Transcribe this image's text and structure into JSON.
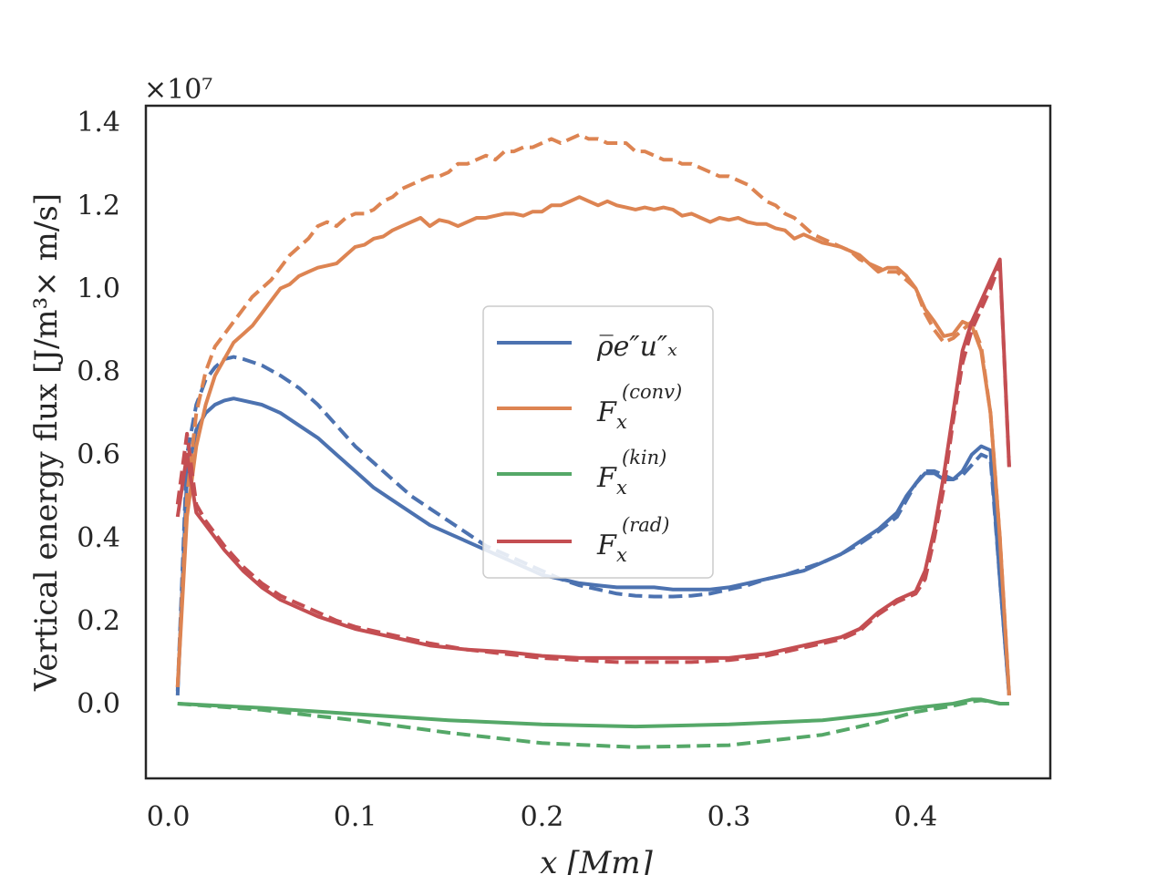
{
  "chart_data": {
    "type": "line",
    "title": "",
    "xlabel": "x [Mm]",
    "ylabel": "Vertical energy flux [J/m³× m/s]",
    "offset_label": "×10⁷",
    "xlim": [
      -0.012,
      0.472
    ],
    "ylim": [
      -0.18,
      1.44
    ],
    "xticks": [
      0.0,
      0.1,
      0.2,
      0.3,
      0.4
    ],
    "xtick_labels": [
      "0.0",
      "0.1",
      "0.2",
      "0.3",
      "0.4"
    ],
    "yticks": [
      0.0,
      0.2,
      0.4,
      0.6,
      0.8,
      1.0,
      1.2,
      1.4
    ],
    "ytick_labels": [
      "0.0",
      "0.2",
      "0.4",
      "0.6",
      "0.8",
      "1.0",
      "1.2",
      "1.4"
    ],
    "legend": {
      "position": "center",
      "entries": [
        {
          "series": "enthalpy",
          "label": "ρ̅e″u″ₓ"
        },
        {
          "series": "conv",
          "label_base": "F",
          "label_sub": "x",
          "label_sup": "(conv)"
        },
        {
          "series": "kin",
          "label_base": "F",
          "label_sub": "x",
          "label_sup": "(kin)"
        },
        {
          "series": "rad",
          "label_base": "F",
          "label_sub": "x",
          "label_sup": "(rad)"
        }
      ]
    },
    "series": [
      {
        "name": "enthalpy",
        "color": "#4c72b0",
        "style": "solid",
        "x": [
          0.005,
          0.01,
          0.015,
          0.02,
          0.025,
          0.03,
          0.035,
          0.04,
          0.05,
          0.06,
          0.07,
          0.08,
          0.09,
          0.1,
          0.11,
          0.12,
          0.13,
          0.14,
          0.15,
          0.16,
          0.17,
          0.18,
          0.19,
          0.2,
          0.21,
          0.22,
          0.23,
          0.24,
          0.25,
          0.26,
          0.27,
          0.28,
          0.29,
          0.3,
          0.31,
          0.32,
          0.33,
          0.34,
          0.35,
          0.36,
          0.37,
          0.38,
          0.39,
          0.395,
          0.4,
          0.405,
          0.41,
          0.415,
          0.42,
          0.425,
          0.43,
          0.435,
          0.44,
          0.445,
          0.45
        ],
        "y": [
          0.02,
          0.55,
          0.66,
          0.7,
          0.72,
          0.73,
          0.735,
          0.73,
          0.72,
          0.7,
          0.67,
          0.64,
          0.6,
          0.56,
          0.52,
          0.49,
          0.46,
          0.43,
          0.41,
          0.39,
          0.37,
          0.35,
          0.33,
          0.31,
          0.3,
          0.29,
          0.285,
          0.28,
          0.28,
          0.28,
          0.275,
          0.275,
          0.275,
          0.28,
          0.29,
          0.3,
          0.31,
          0.32,
          0.34,
          0.36,
          0.39,
          0.42,
          0.46,
          0.5,
          0.53,
          0.555,
          0.555,
          0.54,
          0.54,
          0.56,
          0.6,
          0.62,
          0.61,
          0.3,
          0.02
        ]
      },
      {
        "name": "enthalpy_dashed",
        "color": "#4c72b0",
        "style": "dashed",
        "x": [
          0.005,
          0.01,
          0.015,
          0.02,
          0.025,
          0.03,
          0.035,
          0.04,
          0.05,
          0.06,
          0.07,
          0.08,
          0.09,
          0.1,
          0.11,
          0.12,
          0.13,
          0.14,
          0.15,
          0.16,
          0.17,
          0.18,
          0.19,
          0.2,
          0.21,
          0.22,
          0.23,
          0.24,
          0.25,
          0.26,
          0.27,
          0.28,
          0.29,
          0.3,
          0.31,
          0.32,
          0.33,
          0.34,
          0.35,
          0.36,
          0.37,
          0.38,
          0.39,
          0.395,
          0.4,
          0.405,
          0.41,
          0.415,
          0.42,
          0.425,
          0.43,
          0.435,
          0.44,
          0.445,
          0.45
        ],
        "y": [
          0.03,
          0.6,
          0.72,
          0.78,
          0.81,
          0.83,
          0.835,
          0.83,
          0.815,
          0.79,
          0.76,
          0.72,
          0.67,
          0.62,
          0.58,
          0.54,
          0.5,
          0.47,
          0.44,
          0.41,
          0.38,
          0.36,
          0.34,
          0.32,
          0.3,
          0.285,
          0.275,
          0.265,
          0.26,
          0.258,
          0.258,
          0.26,
          0.265,
          0.275,
          0.285,
          0.3,
          0.31,
          0.325,
          0.34,
          0.36,
          0.385,
          0.415,
          0.45,
          0.49,
          0.53,
          0.56,
          0.56,
          0.55,
          0.54,
          0.55,
          0.575,
          0.6,
          0.59,
          0.3,
          0.02
        ]
      },
      {
        "name": "conv",
        "color": "#dd8452",
        "style": "solid",
        "x": [
          0.005,
          0.01,
          0.015,
          0.02,
          0.025,
          0.03,
          0.035,
          0.04,
          0.045,
          0.05,
          0.055,
          0.06,
          0.065,
          0.07,
          0.075,
          0.08,
          0.085,
          0.09,
          0.095,
          0.1,
          0.105,
          0.11,
          0.115,
          0.12,
          0.125,
          0.13,
          0.135,
          0.14,
          0.145,
          0.15,
          0.155,
          0.16,
          0.165,
          0.17,
          0.175,
          0.18,
          0.185,
          0.19,
          0.195,
          0.2,
          0.205,
          0.21,
          0.215,
          0.22,
          0.225,
          0.23,
          0.235,
          0.24,
          0.245,
          0.25,
          0.255,
          0.26,
          0.265,
          0.27,
          0.275,
          0.28,
          0.285,
          0.29,
          0.295,
          0.3,
          0.305,
          0.31,
          0.315,
          0.32,
          0.325,
          0.33,
          0.335,
          0.34,
          0.345,
          0.35,
          0.355,
          0.36,
          0.365,
          0.37,
          0.375,
          0.38,
          0.385,
          0.39,
          0.395,
          0.4,
          0.405,
          0.41,
          0.415,
          0.42,
          0.425,
          0.43,
          0.435,
          0.44,
          0.445,
          0.45
        ],
        "y": [
          0.04,
          0.45,
          0.62,
          0.72,
          0.79,
          0.83,
          0.87,
          0.89,
          0.91,
          0.94,
          0.97,
          1.0,
          1.01,
          1.03,
          1.04,
          1.05,
          1.055,
          1.06,
          1.08,
          1.1,
          1.105,
          1.12,
          1.125,
          1.14,
          1.15,
          1.16,
          1.17,
          1.15,
          1.165,
          1.16,
          1.15,
          1.16,
          1.17,
          1.17,
          1.175,
          1.18,
          1.18,
          1.175,
          1.185,
          1.185,
          1.2,
          1.2,
          1.21,
          1.22,
          1.21,
          1.2,
          1.21,
          1.2,
          1.195,
          1.19,
          1.195,
          1.19,
          1.195,
          1.19,
          1.175,
          1.18,
          1.17,
          1.16,
          1.17,
          1.165,
          1.17,
          1.16,
          1.155,
          1.155,
          1.145,
          1.14,
          1.12,
          1.13,
          1.12,
          1.11,
          1.105,
          1.1,
          1.09,
          1.08,
          1.06,
          1.04,
          1.05,
          1.05,
          1.03,
          1.0,
          0.95,
          0.92,
          0.885,
          0.89,
          0.92,
          0.91,
          0.85,
          0.7,
          0.4,
          0.02
        ]
      },
      {
        "name": "conv_dashed",
        "color": "#dd8452",
        "style": "dashed",
        "x": [
          0.005,
          0.01,
          0.015,
          0.02,
          0.025,
          0.03,
          0.035,
          0.04,
          0.045,
          0.05,
          0.055,
          0.06,
          0.065,
          0.07,
          0.075,
          0.08,
          0.085,
          0.09,
          0.095,
          0.1,
          0.105,
          0.11,
          0.115,
          0.12,
          0.125,
          0.13,
          0.135,
          0.14,
          0.145,
          0.15,
          0.155,
          0.16,
          0.165,
          0.17,
          0.175,
          0.18,
          0.185,
          0.19,
          0.195,
          0.2,
          0.205,
          0.21,
          0.215,
          0.22,
          0.225,
          0.23,
          0.235,
          0.24,
          0.245,
          0.25,
          0.255,
          0.26,
          0.265,
          0.27,
          0.275,
          0.28,
          0.285,
          0.29,
          0.295,
          0.3,
          0.305,
          0.31,
          0.315,
          0.32,
          0.325,
          0.33,
          0.335,
          0.34,
          0.345,
          0.35,
          0.355,
          0.36,
          0.365,
          0.37,
          0.375,
          0.38,
          0.385,
          0.39,
          0.395,
          0.4,
          0.405,
          0.41,
          0.415,
          0.42,
          0.425,
          0.43,
          0.435,
          0.44,
          0.445,
          0.45
        ],
        "y": [
          0.04,
          0.5,
          0.7,
          0.8,
          0.86,
          0.89,
          0.92,
          0.95,
          0.98,
          1.0,
          1.02,
          1.05,
          1.08,
          1.1,
          1.12,
          1.15,
          1.16,
          1.15,
          1.17,
          1.18,
          1.18,
          1.19,
          1.21,
          1.22,
          1.24,
          1.25,
          1.26,
          1.27,
          1.27,
          1.28,
          1.3,
          1.3,
          1.31,
          1.32,
          1.31,
          1.33,
          1.33,
          1.34,
          1.34,
          1.35,
          1.36,
          1.35,
          1.36,
          1.37,
          1.36,
          1.36,
          1.35,
          1.35,
          1.35,
          1.33,
          1.33,
          1.32,
          1.31,
          1.31,
          1.3,
          1.3,
          1.29,
          1.28,
          1.27,
          1.27,
          1.26,
          1.25,
          1.23,
          1.21,
          1.2,
          1.18,
          1.17,
          1.15,
          1.13,
          1.12,
          1.11,
          1.1,
          1.09,
          1.07,
          1.06,
          1.05,
          1.04,
          1.04,
          1.02,
          1.0,
          0.94,
          0.9,
          0.87,
          0.88,
          0.9,
          0.92,
          0.86,
          0.7,
          0.4,
          0.02
        ]
      },
      {
        "name": "kin",
        "color": "#55a868",
        "style": "solid",
        "x": [
          0.005,
          0.05,
          0.1,
          0.15,
          0.2,
          0.25,
          0.3,
          0.35,
          0.38,
          0.4,
          0.42,
          0.43,
          0.435,
          0.44,
          0.445,
          0.45
        ],
        "y": [
          0.0,
          -0.01,
          -0.025,
          -0.04,
          -0.05,
          -0.055,
          -0.05,
          -0.04,
          -0.025,
          -0.01,
          0.0,
          0.01,
          0.01,
          0.005,
          0.0,
          0.0
        ]
      },
      {
        "name": "kin_dashed",
        "color": "#55a868",
        "style": "dashed",
        "x": [
          0.005,
          0.05,
          0.1,
          0.15,
          0.2,
          0.25,
          0.3,
          0.35,
          0.38,
          0.4,
          0.42,
          0.43,
          0.435,
          0.44,
          0.445,
          0.45
        ],
        "y": [
          0.0,
          -0.015,
          -0.04,
          -0.07,
          -0.095,
          -0.105,
          -0.1,
          -0.075,
          -0.045,
          -0.02,
          -0.005,
          0.005,
          0.008,
          0.005,
          0.0,
          0.0
        ]
      },
      {
        "name": "rad",
        "color": "#c44e52",
        "style": "solid",
        "x": [
          0.005,
          0.01,
          0.015,
          0.02,
          0.03,
          0.04,
          0.05,
          0.06,
          0.07,
          0.08,
          0.09,
          0.1,
          0.12,
          0.14,
          0.16,
          0.18,
          0.2,
          0.22,
          0.24,
          0.26,
          0.28,
          0.3,
          0.32,
          0.34,
          0.36,
          0.37,
          0.38,
          0.39,
          0.4,
          0.405,
          0.41,
          0.415,
          0.42,
          0.425,
          0.43,
          0.435,
          0.44,
          0.445,
          0.45
        ],
        "y": [
          0.45,
          0.6,
          0.46,
          0.43,
          0.37,
          0.32,
          0.28,
          0.25,
          0.23,
          0.21,
          0.195,
          0.18,
          0.16,
          0.14,
          0.13,
          0.125,
          0.115,
          0.11,
          0.11,
          0.11,
          0.11,
          0.11,
          0.12,
          0.14,
          0.16,
          0.18,
          0.22,
          0.25,
          0.27,
          0.32,
          0.42,
          0.55,
          0.7,
          0.85,
          0.92,
          0.97,
          1.02,
          1.07,
          0.57
        ]
      },
      {
        "name": "rad_dashed",
        "color": "#c44e52",
        "style": "dashed",
        "x": [
          0.005,
          0.01,
          0.015,
          0.02,
          0.03,
          0.04,
          0.05,
          0.06,
          0.07,
          0.08,
          0.09,
          0.1,
          0.12,
          0.14,
          0.16,
          0.18,
          0.2,
          0.22,
          0.24,
          0.26,
          0.28,
          0.3,
          0.32,
          0.34,
          0.36,
          0.37,
          0.38,
          0.39,
          0.4,
          0.405,
          0.41,
          0.415,
          0.42,
          0.425,
          0.43,
          0.435,
          0.44,
          0.445,
          0.45
        ],
        "y": [
          0.48,
          0.65,
          0.48,
          0.44,
          0.38,
          0.33,
          0.29,
          0.26,
          0.24,
          0.22,
          0.2,
          0.185,
          0.165,
          0.145,
          0.13,
          0.12,
          0.11,
          0.105,
          0.1,
          0.1,
          0.1,
          0.105,
          0.115,
          0.135,
          0.155,
          0.175,
          0.215,
          0.245,
          0.265,
          0.3,
          0.4,
          0.52,
          0.68,
          0.82,
          0.9,
          0.95,
          1.0,
          1.06,
          0.57
        ]
      }
    ]
  }
}
